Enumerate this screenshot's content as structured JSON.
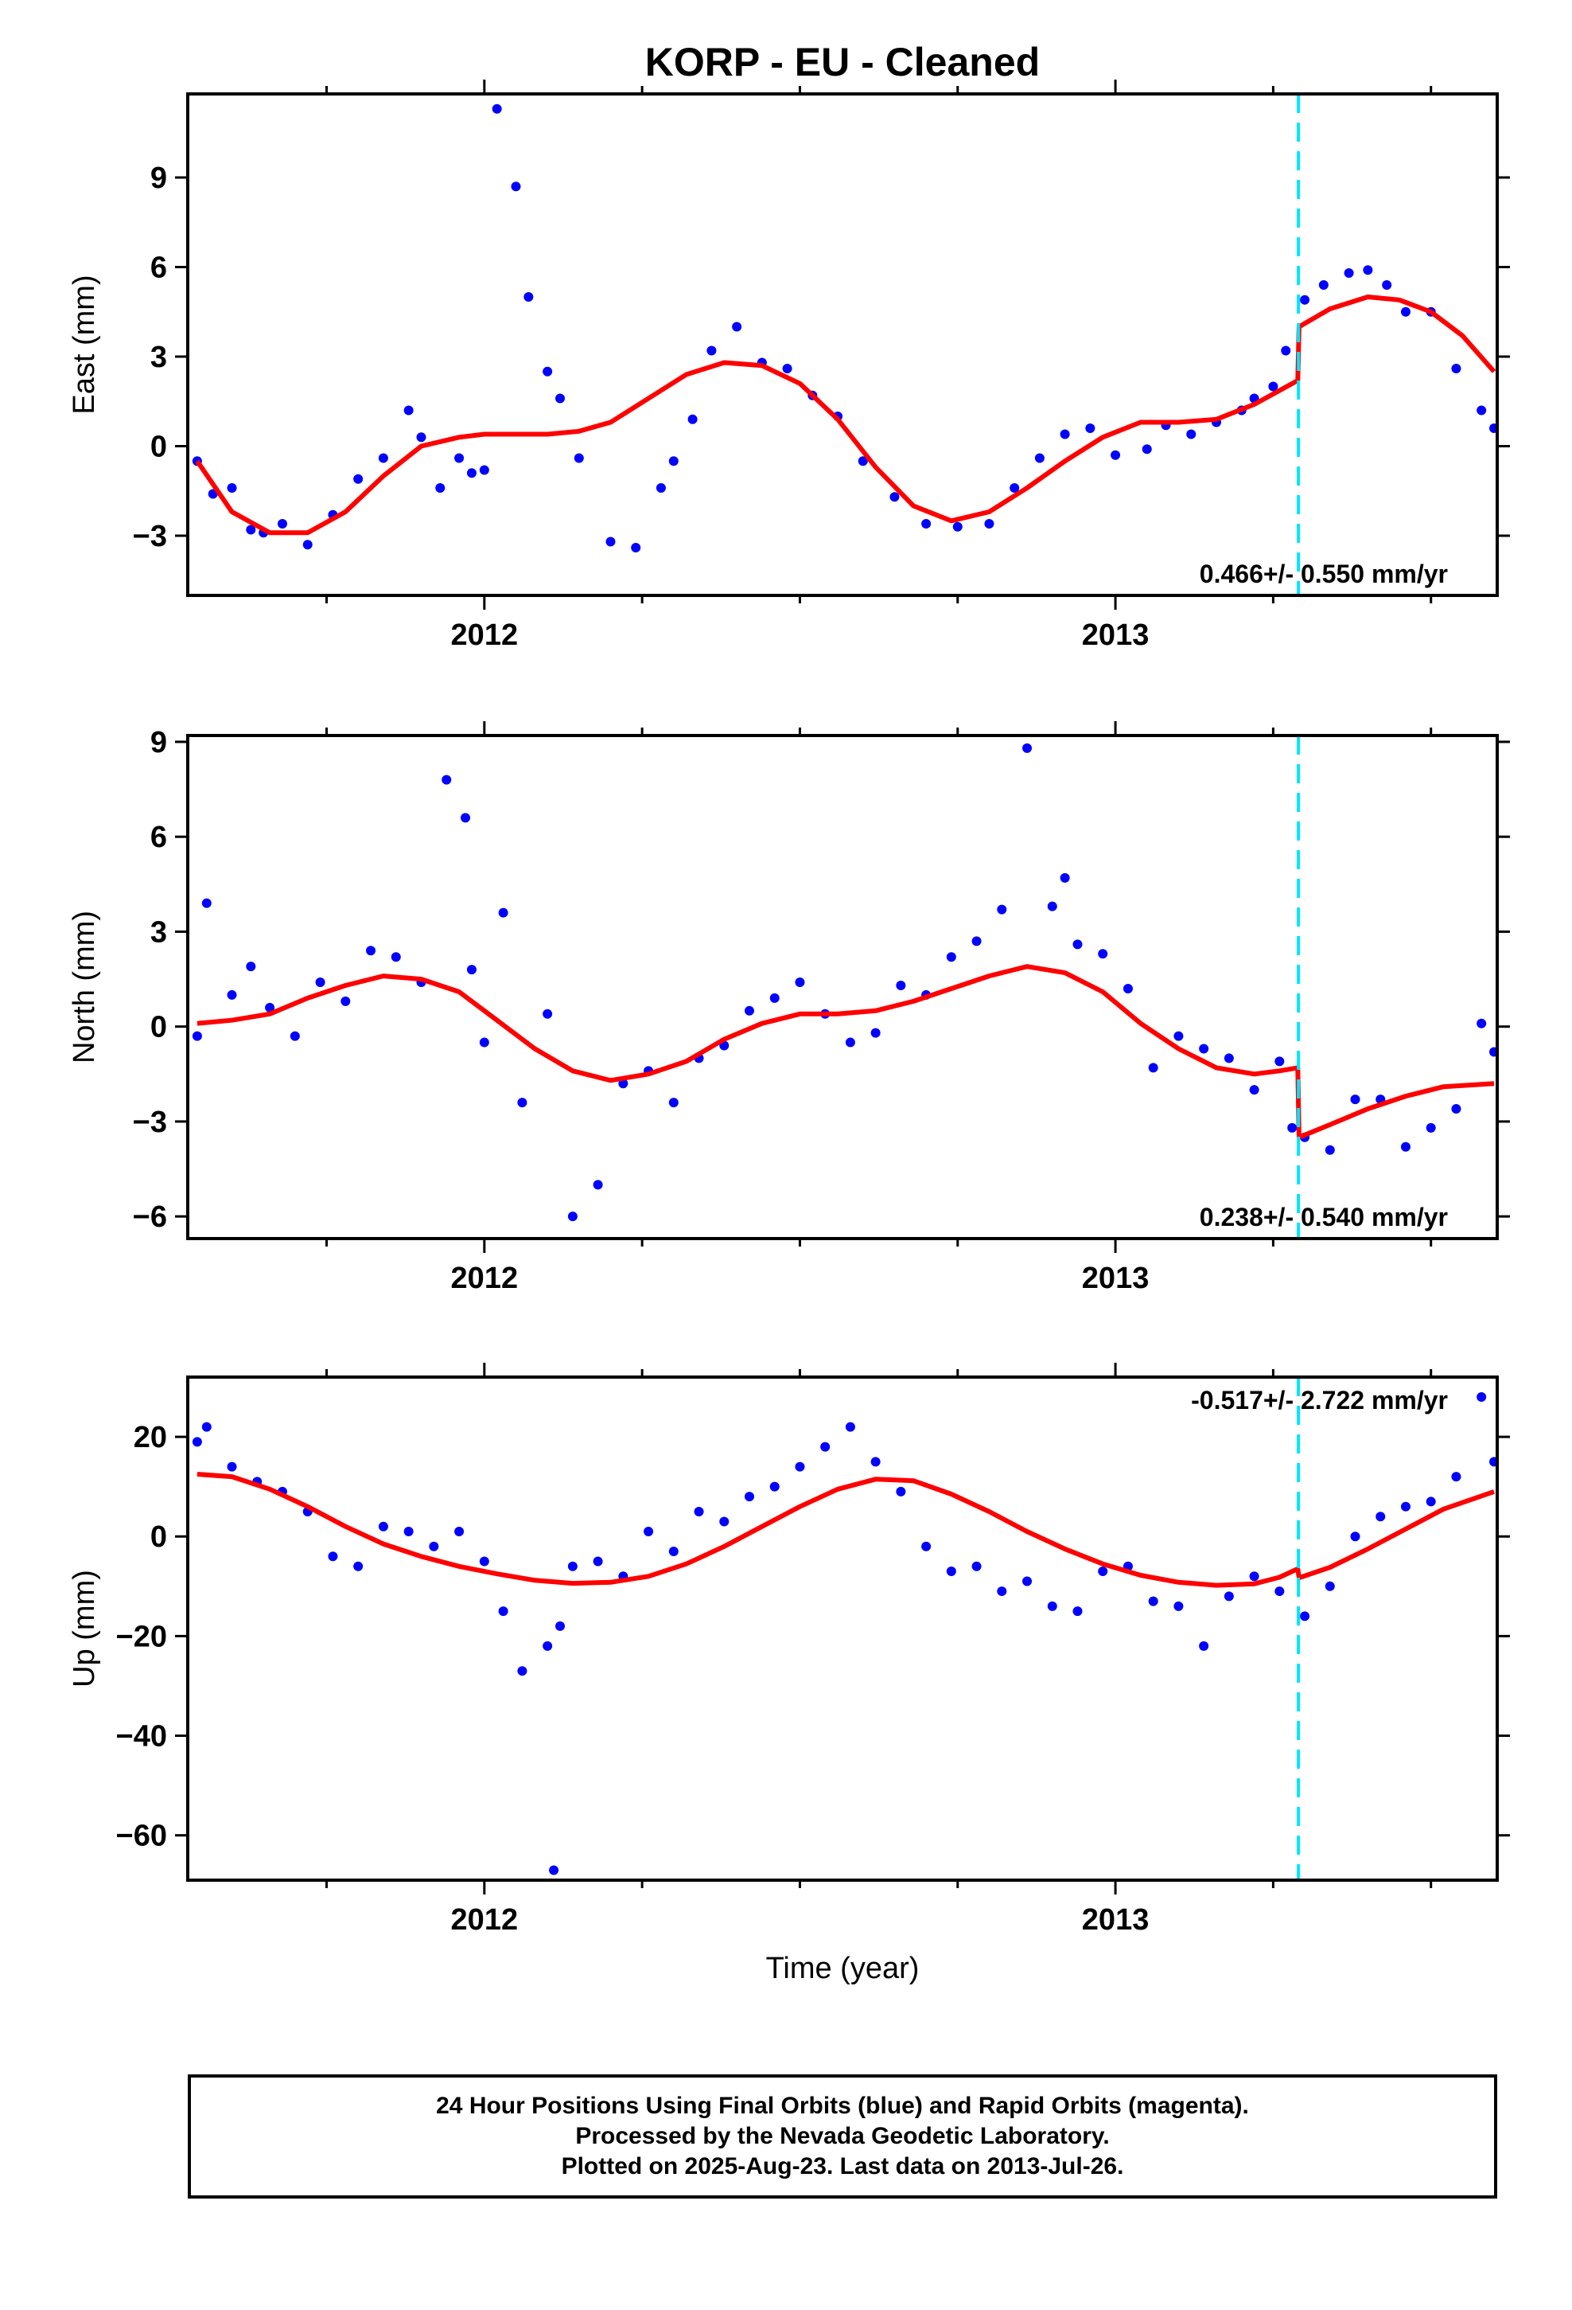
{
  "figure": {
    "title": "KORP  - EU - Cleaned",
    "xlabel": "Time (year)",
    "caption": [
      "24 Hour Positions Using Final Orbits (blue) and Rapid Orbits (magenta).",
      "Processed by the Nevada Geodetic Laboratory.",
      "Plotted on 2025-Aug-23. Last data on 2013-Jul-26."
    ],
    "colors": {
      "final_orbits": "#0000ff",
      "model": "#ff0000",
      "offset_line": "#00e5ff",
      "frame": "#000000"
    }
  },
  "chart_data": [
    {
      "type": "scatter",
      "component": "East",
      "ylabel": "East (mm)",
      "xlim": [
        2011.53,
        2013.605
      ],
      "ylim": [
        -5,
        11.8
      ],
      "x_ticks": [
        2012,
        2013
      ],
      "x_tick_labels": [
        "2012",
        "2013"
      ],
      "y_ticks": [
        -3,
        0,
        3,
        6,
        9
      ],
      "y_tick_labels": [
        "−3",
        "0",
        "3",
        "6",
        "9"
      ],
      "rate_label": "0.466+/- 0.550 mm/yr",
      "rate_position": "bottom-right",
      "offset_epoch": 2013.29,
      "series": [
        {
          "role": "daily positions",
          "style": "points",
          "x": [
            2011.545,
            2011.57,
            2011.6,
            2011.63,
            2011.65,
            2011.68,
            2011.72,
            2011.76,
            2011.8,
            2011.84,
            2011.88,
            2011.9,
            2011.93,
            2011.96,
            2011.98,
            2012.0,
            2012.02,
            2012.05,
            2012.07,
            2012.1,
            2012.12,
            2012.15,
            2012.2,
            2012.24,
            2012.28,
            2012.3,
            2012.33,
            2012.36,
            2012.4,
            2012.44,
            2012.48,
            2012.52,
            2012.56,
            2012.6,
            2012.65,
            2012.7,
            2012.75,
            2012.8,
            2012.84,
            2012.88,
            2012.92,
            2012.96,
            2013.0,
            2013.05,
            2013.08,
            2013.12,
            2013.16,
            2013.2,
            2013.22,
            2013.25,
            2013.27,
            2013.3,
            2013.33,
            2013.37,
            2013.4,
            2013.43,
            2013.46,
            2013.5,
            2013.54,
            2013.58,
            2013.6
          ],
          "y": [
            -0.5,
            -1.6,
            -1.4,
            -2.8,
            -2.9,
            -2.6,
            -3.3,
            -2.3,
            -1.1,
            -0.4,
            1.2,
            0.3,
            -1.4,
            -0.4,
            -0.9,
            -0.8,
            11.3,
            8.7,
            5.0,
            2.5,
            1.6,
            -0.4,
            -3.2,
            -3.4,
            -1.4,
            -0.5,
            0.9,
            3.2,
            4.0,
            2.8,
            2.6,
            1.7,
            1.0,
            -0.5,
            -1.7,
            -2.6,
            -2.7,
            -2.6,
            -1.4,
            -0.4,
            0.4,
            0.6,
            -0.3,
            -0.1,
            0.7,
            0.4,
            0.8,
            1.2,
            1.6,
            2.0,
            3.2,
            4.9,
            5.4,
            5.8,
            5.9,
            5.4,
            4.5,
            4.5,
            2.6,
            1.2,
            0.6
          ]
        },
        {
          "role": "model fit",
          "style": "line",
          "x": [
            2011.545,
            2011.6,
            2011.66,
            2011.72,
            2011.78,
            2011.84,
            2011.9,
            2011.96,
            2012.0,
            2012.05,
            2012.1,
            2012.15,
            2012.2,
            2012.26,
            2012.32,
            2012.38,
            2012.44,
            2012.5,
            2012.56,
            2012.62,
            2012.68,
            2012.74,
            2012.8,
            2012.86,
            2012.92,
            2012.98,
            2013.04,
            2013.1,
            2013.16,
            2013.22,
            2013.289,
            2013.291,
            2013.34,
            2013.4,
            2013.45,
            2013.5,
            2013.55,
            2013.6
          ],
          "y": [
            -0.5,
            -2.2,
            -2.9,
            -2.9,
            -2.2,
            -1.0,
            0.0,
            0.3,
            0.4,
            0.4,
            0.4,
            0.5,
            0.8,
            1.6,
            2.4,
            2.8,
            2.7,
            2.1,
            0.9,
            -0.7,
            -2.0,
            -2.5,
            -2.2,
            -1.4,
            -0.5,
            0.3,
            0.8,
            0.8,
            0.9,
            1.4,
            2.2,
            4.0,
            4.6,
            5.0,
            4.9,
            4.5,
            3.7,
            2.5
          ]
        }
      ]
    },
    {
      "type": "scatter",
      "component": "North",
      "ylabel": "North (mm)",
      "xlim": [
        2011.53,
        2013.605
      ],
      "ylim": [
        -6.7,
        9.2
      ],
      "x_ticks": [
        2012,
        2013
      ],
      "x_tick_labels": [
        "2012",
        "2013"
      ],
      "y_ticks": [
        -6,
        -3,
        0,
        3,
        6,
        9
      ],
      "y_tick_labels": [
        "−6",
        "−3",
        "0",
        "3",
        "6",
        "9"
      ],
      "rate_label": "0.238+/- 0.540 mm/yr",
      "rate_position": "bottom-right",
      "offset_epoch": 2013.29,
      "series": [
        {
          "role": "daily positions",
          "style": "points",
          "x": [
            2011.545,
            2011.56,
            2011.6,
            2011.63,
            2011.66,
            2011.7,
            2011.74,
            2011.78,
            2011.82,
            2011.86,
            2011.9,
            2011.94,
            2011.97,
            2011.98,
            2012.0,
            2012.03,
            2012.06,
            2012.1,
            2012.14,
            2012.18,
            2012.22,
            2012.26,
            2012.3,
            2012.34,
            2012.38,
            2012.42,
            2012.46,
            2012.5,
            2012.54,
            2012.58,
            2012.62,
            2012.66,
            2012.7,
            2012.74,
            2012.78,
            2012.82,
            2012.86,
            2012.9,
            2012.92,
            2012.94,
            2012.98,
            2013.02,
            2013.06,
            2013.1,
            2013.14,
            2013.18,
            2013.22,
            2013.26,
            2013.28,
            2013.3,
            2013.34,
            2013.38,
            2013.42,
            2013.46,
            2013.5,
            2013.54,
            2013.58,
            2013.6
          ],
          "y": [
            -0.3,
            3.9,
            1.0,
            1.9,
            0.6,
            -0.3,
            1.4,
            0.8,
            2.4,
            2.2,
            1.4,
            7.8,
            6.6,
            1.8,
            -0.5,
            3.6,
            -2.4,
            0.4,
            -6.0,
            -5.0,
            -1.8,
            -1.4,
            -2.4,
            -1.0,
            -0.6,
            0.5,
            0.9,
            1.4,
            0.4,
            -0.5,
            -0.2,
            1.3,
            1.0,
            2.2,
            2.7,
            3.7,
            8.8,
            3.8,
            4.7,
            2.6,
            2.3,
            1.2,
            -1.3,
            -0.3,
            -0.7,
            -1.0,
            -2.0,
            -1.1,
            -3.2,
            -3.5,
            -3.9,
            -2.3,
            -2.3,
            -3.8,
            -3.2,
            -2.6,
            0.1,
            -0.8
          ]
        },
        {
          "role": "model fit",
          "style": "line",
          "x": [
            2011.545,
            2011.6,
            2011.66,
            2011.72,
            2011.78,
            2011.84,
            2011.9,
            2011.96,
            2012.02,
            2012.08,
            2012.14,
            2012.2,
            2012.26,
            2012.32,
            2012.38,
            2012.44,
            2012.5,
            2012.56,
            2012.62,
            2012.68,
            2012.74,
            2012.8,
            2012.86,
            2012.92,
            2012.98,
            2013.04,
            2013.1,
            2013.16,
            2013.22,
            2013.26,
            2013.289,
            2013.291,
            2013.34,
            2013.4,
            2013.46,
            2013.52,
            2013.6
          ],
          "y": [
            0.1,
            0.2,
            0.4,
            0.9,
            1.3,
            1.6,
            1.5,
            1.1,
            0.2,
            -0.7,
            -1.4,
            -1.7,
            -1.5,
            -1.1,
            -0.4,
            0.1,
            0.4,
            0.4,
            0.5,
            0.8,
            1.2,
            1.6,
            1.9,
            1.7,
            1.1,
            0.1,
            -0.7,
            -1.3,
            -1.5,
            -1.4,
            -1.3,
            -3.5,
            -3.1,
            -2.6,
            -2.2,
            -1.9,
            -1.8
          ]
        }
      ]
    },
    {
      "type": "scatter",
      "component": "Up",
      "ylabel": "Up (mm)",
      "xlim": [
        2011.53,
        2013.605
      ],
      "ylim": [
        -69,
        32
      ],
      "x_ticks": [
        2012,
        2013
      ],
      "x_tick_labels": [
        "2012",
        "2013"
      ],
      "y_ticks": [
        -60,
        -40,
        -20,
        0,
        20
      ],
      "y_tick_labels": [
        "−60",
        "−40",
        "−20",
        "0",
        "20"
      ],
      "rate_label": "-0.517+/- 2.722 mm/yr",
      "rate_position": "top-right",
      "offset_epoch": 2013.29,
      "series": [
        {
          "role": "daily positions",
          "style": "points",
          "x": [
            2011.545,
            2011.56,
            2011.6,
            2011.64,
            2011.68,
            2011.72,
            2011.76,
            2011.8,
            2011.84,
            2011.88,
            2011.92,
            2011.96,
            2012.0,
            2012.03,
            2012.06,
            2012.1,
            2012.11,
            2012.12,
            2012.14,
            2012.18,
            2012.22,
            2012.26,
            2012.3,
            2012.34,
            2012.38,
            2012.42,
            2012.46,
            2012.5,
            2012.54,
            2012.58,
            2012.62,
            2012.66,
            2012.7,
            2012.74,
            2012.78,
            2012.82,
            2012.86,
            2012.9,
            2012.94,
            2012.98,
            2013.02,
            2013.06,
            2013.1,
            2013.14,
            2013.18,
            2013.22,
            2013.26,
            2013.3,
            2013.34,
            2013.38,
            2013.42,
            2013.46,
            2013.5,
            2013.54,
            2013.58,
            2013.6
          ],
          "y": [
            19,
            22,
            14,
            11,
            9,
            5,
            -4,
            -6,
            2,
            1,
            -2,
            1,
            -5,
            -15,
            -27,
            -22,
            -67,
            -18,
            -6,
            -5,
            -8,
            1,
            -3,
            5,
            3,
            8,
            10,
            14,
            18,
            22,
            15,
            9,
            -2,
            -7,
            -6,
            -11,
            -9,
            -14,
            -15,
            -7,
            -6,
            -13,
            -14,
            -22,
            -12,
            -8,
            -11,
            -16,
            -10,
            0,
            4,
            6,
            7,
            12,
            28,
            15
          ]
        },
        {
          "role": "model fit",
          "style": "line",
          "x": [
            2011.545,
            2011.6,
            2011.66,
            2011.72,
            2011.78,
            2011.84,
            2011.9,
            2011.96,
            2012.02,
            2012.08,
            2012.14,
            2012.2,
            2012.26,
            2012.32,
            2012.38,
            2012.44,
            2012.5,
            2012.56,
            2012.62,
            2012.68,
            2012.74,
            2012.8,
            2012.86,
            2012.92,
            2012.98,
            2013.04,
            2013.1,
            2013.16,
            2013.22,
            2013.26,
            2013.289,
            2013.291,
            2013.34,
            2013.4,
            2013.46,
            2013.52,
            2013.6
          ],
          "y": [
            12.5,
            12.0,
            9.5,
            6.0,
            2.0,
            -1.5,
            -4.0,
            -6.0,
            -7.5,
            -8.8,
            -9.4,
            -9.2,
            -8.0,
            -5.5,
            -2.0,
            2.0,
            6.0,
            9.5,
            11.5,
            11.2,
            8.5,
            5.0,
            1.0,
            -2.5,
            -5.5,
            -7.8,
            -9.2,
            -9.8,
            -9.5,
            -8.2,
            -6.5,
            -8.3,
            -6.2,
            -2.5,
            1.5,
            5.5,
            9.0
          ]
        }
      ]
    }
  ]
}
